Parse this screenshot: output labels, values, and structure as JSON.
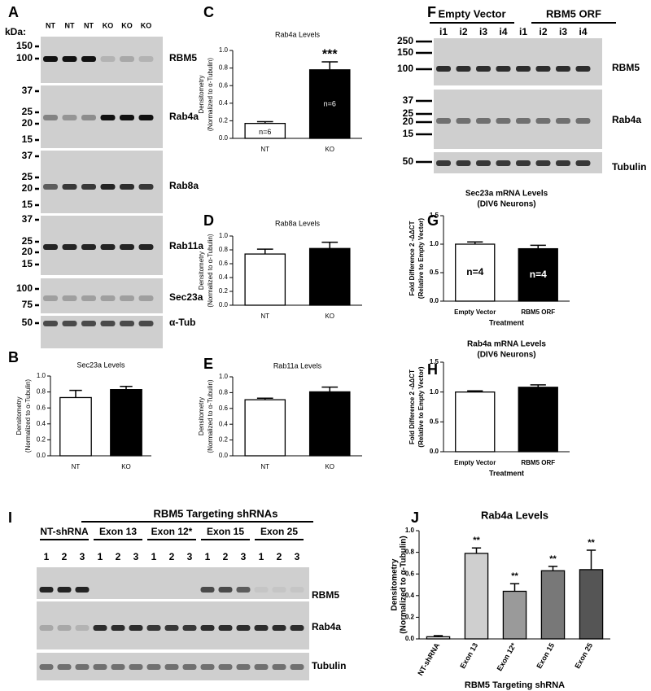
{
  "panel_letters": [
    "A",
    "B",
    "C",
    "D",
    "E",
    "F",
    "G",
    "H",
    "I",
    "J"
  ],
  "blot_a": {
    "kda_label": "kDa:",
    "lanes": [
      "NT",
      "NT",
      "NT",
      "KO",
      "KO",
      "KO"
    ],
    "strips": [
      {
        "markers": [
          "150",
          "100"
        ],
        "label": "RBM5"
      },
      {
        "markers": [
          "37",
          "25",
          "20",
          "15"
        ],
        "label": "Rab4a"
      },
      {
        "markers": [
          "37",
          "25",
          "20",
          "15"
        ],
        "label": "Rab8a"
      },
      {
        "markers": [
          "37",
          "25",
          "20",
          "15"
        ],
        "label": "Rab11a"
      },
      {
        "markers": [
          "100",
          "75"
        ],
        "label": "Sec23a"
      },
      {
        "markers": [
          "50"
        ],
        "label": "α-Tub"
      }
    ]
  },
  "blot_f": {
    "groups": [
      "Empty Vector",
      "RBM5 ORF"
    ],
    "lanes": [
      "i1",
      "i2",
      "i3",
      "i4",
      "i1",
      "i2",
      "i3",
      "i4"
    ],
    "strips": [
      {
        "markers": [
          "250",
          "150",
          "100"
        ],
        "label": "RBM5"
      },
      {
        "markers": [
          "37",
          "25",
          "20",
          "15"
        ],
        "label": "Rab4a"
      },
      {
        "markers": [
          "50"
        ],
        "label": "Tubulin"
      }
    ]
  },
  "blot_i": {
    "title": "RBM5 Targeting shRNAs",
    "groups": [
      "NT-shRNA",
      "Exon 13",
      "Exon 12*",
      "Exon 15",
      "Exon 25"
    ],
    "lanes": [
      "1",
      "2",
      "3",
      "1",
      "2",
      "3",
      "1",
      "2",
      "3",
      "1",
      "2",
      "3",
      "1",
      "2",
      "3"
    ],
    "strips": [
      {
        "markers": [],
        "label": "RBM5"
      },
      {
        "markers": [],
        "label": "Rab4a"
      },
      {
        "markers": [],
        "label": "Tubulin"
      }
    ]
  },
  "chart_data": [
    {
      "type": "bar",
      "title": "Sec23a Levels",
      "ylabel": [
        "Densitometry",
        "(Normalized to α-Tubulin)"
      ],
      "categories": [
        "NT",
        "KO"
      ],
      "values": [
        0.73,
        0.83
      ],
      "errors": [
        0.09,
        0.04
      ],
      "colors": [
        "#ffffff",
        "#000000"
      ],
      "ylim": [
        0,
        1.0
      ],
      "yticks": [
        {
          "value": 0,
          "label": "0.0"
        },
        0.2,
        0.4,
        0.6,
        0.8,
        {
          "value": 1.0,
          "label": "1.0"
        }
      ]
    },
    {
      "type": "bar",
      "title": "Rab4a Levels",
      "ylabel": [
        "Densitometry",
        "(Normalized to α-Tubulin)"
      ],
      "categories": [
        "NT",
        "KO"
      ],
      "values": [
        0.17,
        0.78
      ],
      "errors": [
        0.02,
        0.09
      ],
      "colors": [
        "#ffffff",
        "#000000"
      ],
      "n_labels": [
        "n=6",
        "n=6"
      ],
      "sig_labels": [
        null,
        "***"
      ],
      "ylim": [
        0,
        1.0
      ],
      "yticks": [
        {
          "value": 0,
          "label": "0.0"
        },
        0.2,
        0.4,
        0.6,
        0.8,
        {
          "value": 1.0,
          "label": "1.0"
        }
      ]
    },
    {
      "type": "bar",
      "title": "Rab8a Levels",
      "ylabel": [
        "Densitometry",
        "(Normalized to α-Tubulin)"
      ],
      "categories": [
        "NT",
        "KO"
      ],
      "values": [
        0.74,
        0.82
      ],
      "errors": [
        0.07,
        0.09
      ],
      "colors": [
        "#ffffff",
        "#000000"
      ],
      "ylim": [
        0,
        1.0
      ],
      "yticks": [
        {
          "value": 0,
          "label": "0.0"
        },
        0.2,
        0.4,
        0.6,
        0.8,
        {
          "value": 1.0,
          "label": "1.0"
        }
      ]
    },
    {
      "type": "bar",
      "title": "Rab11a Levels",
      "ylabel": [
        "Densitometry",
        "(Normalized to α-Tubulin)"
      ],
      "categories": [
        "NT",
        "KO"
      ],
      "values": [
        0.71,
        0.81
      ],
      "errors": [
        0.02,
        0.06
      ],
      "colors": [
        "#ffffff",
        "#000000"
      ],
      "ylim": [
        0,
        1.0
      ],
      "yticks": [
        {
          "value": 0,
          "label": "0.0"
        },
        0.2,
        0.4,
        0.6,
        0.8,
        {
          "value": 1.0,
          "label": "1.0"
        }
      ]
    },
    {
      "type": "bar",
      "title": "Sec23a mRNA Levels",
      "subtitle": "(DIV6 Neurons)",
      "ylabel": [
        "Fold Difference 2 -ΔΔCT",
        "(Relative to Empty Vector)"
      ],
      "xlabel": "Treatment",
      "categories": [
        "Empty Vector",
        "RBM5 ORF"
      ],
      "values": [
        1.0,
        0.92
      ],
      "errors": [
        0.04,
        0.06
      ],
      "colors": [
        "#ffffff",
        "#000000"
      ],
      "n_labels": [
        "n=4",
        "n=4"
      ],
      "ylim": [
        0,
        1.5
      ],
      "yticks": [
        {
          "value": 0,
          "label": "0.0"
        },
        0.5,
        {
          "value": 1.0,
          "label": "1.0"
        },
        1.5
      ]
    },
    {
      "type": "bar",
      "title": "Rab4a mRNA Levels",
      "subtitle": "(DIV6 Neurons)",
      "ylabel": [
        "Fold Difference 2 -ΔΔCT",
        "(Relative to Empty Vector)"
      ],
      "xlabel": "Treatment",
      "categories": [
        "Empty Vector",
        "RBM5 ORF"
      ],
      "values": [
        1.0,
        1.08
      ],
      "errors": [
        0.02,
        0.04
      ],
      "colors": [
        "#ffffff",
        "#000000"
      ],
      "ylim": [
        0,
        1.5
      ],
      "yticks": [
        {
          "value": 0,
          "label": "0.0"
        },
        0.5,
        {
          "value": 1.0,
          "label": "1.0"
        },
        1.5
      ]
    },
    {
      "type": "bar",
      "title": "Rab4a Levels",
      "ylabel": [
        "Densitometry",
        "(Normalized to α-Tubulin)"
      ],
      "xlabel": "RBM5 Targeting shRNA",
      "categories": [
        "NT-shRNA",
        "Exon 13",
        "Exon 12*",
        "Exon 15",
        "Exon 25"
      ],
      "values": [
        0.02,
        0.79,
        0.44,
        0.63,
        0.64
      ],
      "errors": [
        0.01,
        0.05,
        0.07,
        0.04,
        0.18
      ],
      "colors": [
        "#e8e8e8",
        "#cfcfcf",
        "#9a9a9a",
        "#787878",
        "#555555"
      ],
      "sig_labels": [
        null,
        "**",
        "**",
        "**",
        "**"
      ],
      "ylim": [
        0,
        1.0
      ],
      "yticks": [
        {
          "value": 0,
          "label": "0.0"
        },
        0.2,
        0.4,
        0.6,
        0.8,
        {
          "value": 1.0,
          "label": "1.0"
        }
      ]
    }
  ]
}
